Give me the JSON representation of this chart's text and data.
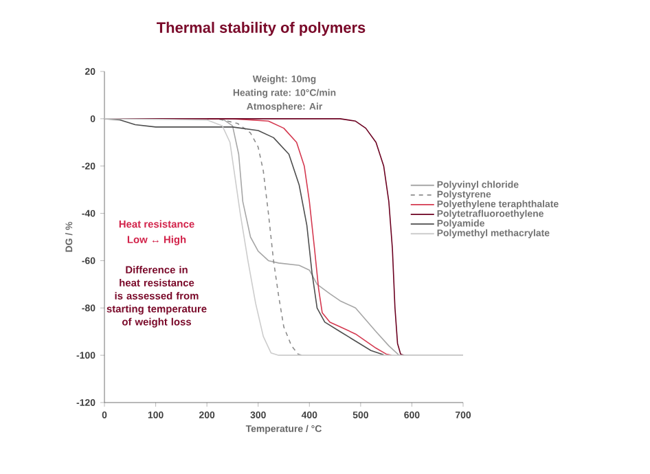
{
  "chart_data": {
    "type": "line",
    "title": "Thermal stability of polymers",
    "xlabel": "Temperature / °C",
    "ylabel": "DG / %",
    "annotations": [
      "Weight: 10mg",
      "Heating rate: 10°C/min",
      "Atmosphere: Air",
      "Heat resistance",
      "Low ↔ High",
      "Difference in heat resistance is assessed from starting temperature of weight loss"
    ],
    "xlim": [
      0,
      700
    ],
    "ylim": [
      -120,
      20
    ],
    "xticks": [
      0,
      100,
      200,
      300,
      400,
      500,
      600,
      700
    ],
    "yticks": [
      -120,
      -100,
      -80,
      -60,
      -40,
      -20,
      0,
      20
    ],
    "legend": "right",
    "grid": false,
    "marker": "none",
    "series": [
      {
        "name": "Polyvinyl chloride",
        "color": "#a6a6a6",
        "line_style": "solid",
        "x": [
          0,
          230,
          250,
          262,
          270,
          285,
          300,
          320,
          340,
          380,
          400,
          415,
          440,
          460,
          490,
          510,
          530,
          555,
          575,
          700
        ],
        "values": [
          0,
          0,
          -3,
          -15,
          -35,
          -50,
          -56,
          -60,
          -61,
          -62,
          -64,
          -70,
          -74,
          -77,
          -80,
          -85,
          -90,
          -96,
          -100,
          -100
        ]
      },
      {
        "name": "Polystyrene",
        "color": "#8c8c8c",
        "line_style": "dashed",
        "x": [
          0,
          220,
          260,
          285,
          300,
          310,
          320,
          330,
          340,
          350,
          365,
          378,
          385
        ],
        "values": [
          0,
          0,
          -2,
          -6,
          -12,
          -22,
          -40,
          -60,
          -75,
          -88,
          -96,
          -99.5,
          -100
        ]
      },
      {
        "name": "Polyethylene teraphthalate",
        "color": "#d4384f",
        "line_style": "solid",
        "x": [
          0,
          250,
          320,
          350,
          375,
          390,
          400,
          410,
          418,
          425,
          440,
          460,
          490,
          510,
          530,
          550,
          560
        ],
        "values": [
          0,
          0,
          -1,
          -4,
          -10,
          -20,
          -35,
          -55,
          -72,
          -82,
          -86,
          -88,
          -91,
          -94,
          -97,
          -99.5,
          -100
        ]
      },
      {
        "name": "Polytetrafluoroethylene",
        "color": "#6b0020",
        "line_style": "solid",
        "x": [
          0,
          460,
          490,
          510,
          530,
          545,
          555,
          562,
          567,
          572,
          578,
          585
        ],
        "values": [
          0,
          0,
          -1,
          -4,
          -10,
          -20,
          -35,
          -55,
          -80,
          -95,
          -99.5,
          -100
        ]
      },
      {
        "name": "Polyamide",
        "color": "#4d4d4d",
        "line_style": "solid",
        "x": [
          0,
          30,
          60,
          100,
          250,
          300,
          330,
          360,
          380,
          395,
          405,
          415,
          430,
          460,
          490,
          520,
          545
        ],
        "values": [
          0,
          -0.5,
          -2.5,
          -3.5,
          -3.5,
          -5,
          -8,
          -15,
          -28,
          -45,
          -65,
          -80,
          -86,
          -90,
          -94,
          -98,
          -99.8
        ]
      },
      {
        "name": "Polymethyl methacrylate",
        "color": "#cccccc",
        "line_style": "solid",
        "x": [
          0,
          200,
          230,
          245,
          255,
          265,
          280,
          295,
          310,
          325,
          340,
          700
        ],
        "values": [
          0,
          -0.5,
          -3,
          -10,
          -25,
          -40,
          -60,
          -78,
          -92,
          -99,
          -100,
          -100
        ]
      }
    ]
  }
}
